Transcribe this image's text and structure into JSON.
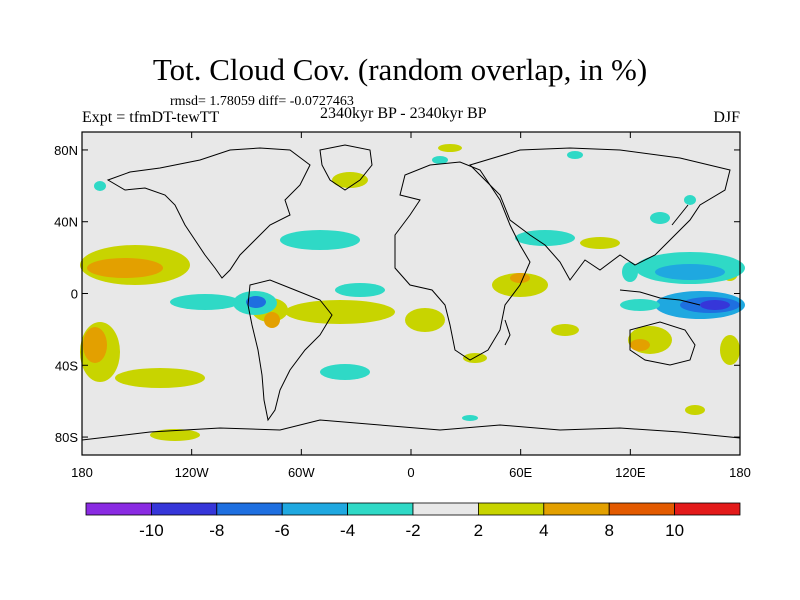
{
  "title": "Tot. Cloud Cov. (random overlap, in %)",
  "stats": "rmsd= 1.78059  diff= -0.0727463",
  "experiment": "Expt = tfmDT-tewTT",
  "period": "2340kyr BP - 2340kyr BP",
  "season": "DJF",
  "axes": {
    "lat_ticks": [
      {
        "label": "80N",
        "value": 80
      },
      {
        "label": "40N",
        "value": 40
      },
      {
        "label": "0",
        "value": 0
      },
      {
        "label": "40S",
        "value": -40
      },
      {
        "label": "80S",
        "value": -80
      }
    ],
    "lon_ticks": [
      {
        "label": "180",
        "value": -180
      },
      {
        "label": "120W",
        "value": -120
      },
      {
        "label": "60W",
        "value": -60
      },
      {
        "label": "0",
        "value": 0
      },
      {
        "label": "60E",
        "value": 60
      },
      {
        "label": "120E",
        "value": 120
      },
      {
        "label": "180",
        "value": 180
      }
    ],
    "lat_range": [
      -90,
      90
    ],
    "lon_range": [
      -180,
      180
    ]
  },
  "colorbar": {
    "colors": [
      "#8a2be2",
      "#3636d9",
      "#1e6fe0",
      "#1fa8e0",
      "#2fd9c6",
      "#e8e8e8",
      "#c8d400",
      "#e3a000",
      "#e35a00",
      "#e31a1a"
    ],
    "labels": [
      "-10",
      "-8",
      "-6",
      "-4",
      "-2",
      "2",
      "4",
      "8",
      "10"
    ]
  },
  "legend_colors": {
    "neutral": "#e8e8e8",
    "pos1": "#c8d400",
    "pos2": "#e3a000",
    "pos3": "#e35a00",
    "neg1": "#2fd9c6",
    "neg2": "#1fa8e0",
    "neg3": "#1e6fe0",
    "neg4": "#3636d9",
    "neg5": "#8a2be2"
  }
}
